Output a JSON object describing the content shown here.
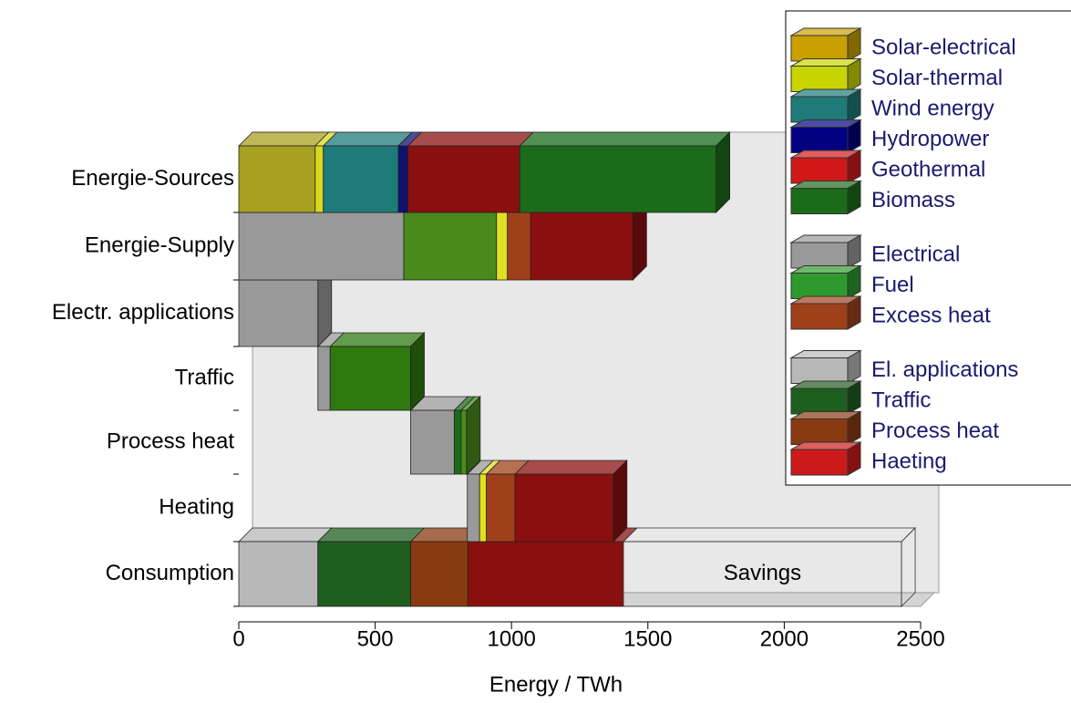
{
  "chart_data": {
    "type": "floating-stacked-bar-3d",
    "x_label": "Energy / TWh",
    "xlim": [
      0,
      2500
    ],
    "xticks": [
      0,
      500,
      1000,
      1500,
      2000,
      2500
    ],
    "rows": [
      {
        "label": "Energie-Sources",
        "start": 0,
        "segments": [
          {
            "color": "#a8a020",
            "value": 280
          },
          {
            "color": "#d8d820",
            "value": 30
          },
          {
            "color": "#1f7a7a",
            "value": 275
          },
          {
            "color": "#10106e",
            "value": 35
          },
          {
            "color": "#8a1010",
            "value": 410
          },
          {
            "color": "#1a6b1a",
            "value": 720
          }
        ]
      },
      {
        "label": "Energie-Supply",
        "start": 0,
        "segments": [
          {
            "color": "#999999",
            "value": 605
          },
          {
            "color": "#4a8a1a",
            "value": 340
          },
          {
            "color": "#e0e020",
            "value": 40
          },
          {
            "color": "#a0401a",
            "value": 85
          },
          {
            "color": "#8a1010",
            "value": 375
          }
        ]
      },
      {
        "label": "Electr. applications",
        "start": 0,
        "segments": [
          {
            "color": "#999999",
            "value": 290
          }
        ]
      },
      {
        "label": "Traffic",
        "start": 290,
        "segments": [
          {
            "color": "#999999",
            "value": 45
          },
          {
            "color": "#2e7a10",
            "value": 295
          }
        ]
      },
      {
        "label": "Process heat",
        "start": 630,
        "segments": [
          {
            "color": "#999999",
            "value": 160
          },
          {
            "color": "#1a6b1a",
            "value": 25
          },
          {
            "color": "#4a8a1a",
            "value": 20
          }
        ]
      },
      {
        "label": "Heating",
        "start": 838,
        "segments": [
          {
            "color": "#999999",
            "value": 45
          },
          {
            "color": "#e0e020",
            "value": 25
          },
          {
            "color": "#a0401a",
            "value": 105
          },
          {
            "color": "#8a1010",
            "value": 360
          }
        ]
      },
      {
        "label": "Consumption",
        "start": 0,
        "segments": [
          {
            "color": "#b8b8b8",
            "value": 290
          },
          {
            "color": "#1e5e1e",
            "value": 340
          },
          {
            "color": "#8a3a10",
            "value": 210
          },
          {
            "color": "#8a1010",
            "value": 570
          },
          {
            "label": "Savings",
            "style": "wireframe",
            "value": 1020
          }
        ]
      }
    ],
    "legend": {
      "groups": [
        [
          {
            "name": "Solar-electrical",
            "color": "#c9a000"
          },
          {
            "name": "Solar-thermal",
            "color": "#c8d400"
          },
          {
            "name": "Wind energy",
            "color": "#1f7a7a"
          },
          {
            "name": "Hydropower",
            "color": "#000080"
          },
          {
            "name": "Geothermal",
            "color": "#d01818"
          },
          {
            "name": "Biomass",
            "color": "#1a6b1a"
          }
        ],
        [
          {
            "name": "Electrical",
            "color": "#999999"
          },
          {
            "name": "Fuel",
            "color": "#2e9a2e"
          },
          {
            "name": "Excess heat",
            "color": "#a0401a"
          }
        ],
        [
          {
            "name": "El. applications",
            "color": "#b8b8b8"
          },
          {
            "name": "Traffic",
            "color": "#1e5e1e"
          },
          {
            "name": "Process heat",
            "color": "#8a3a10"
          },
          {
            "name": "Haeting",
            "color": "#cc1a1a"
          }
        ]
      ]
    }
  }
}
